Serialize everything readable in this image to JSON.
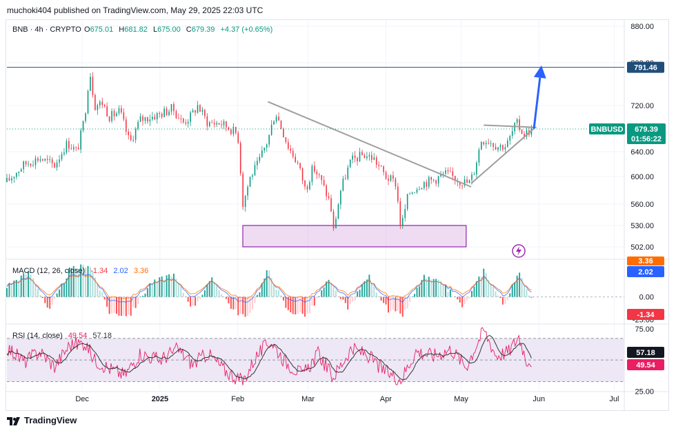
{
  "header": {
    "publish_line": "muchoki404 published on TradingView.com, May 29, 2025 22:03 UTC"
  },
  "legend": {
    "symbol": "BNB · 4h · CRYPTO",
    "open_label": "O",
    "open": "675.01",
    "high_label": "H",
    "high": "681.82",
    "low_label": "L",
    "low": "675.00",
    "close_label": "C",
    "close": "679.39",
    "change": "+4.37 (+0.65%)"
  },
  "colors": {
    "up": "#089981",
    "down": "#f23645",
    "accent": "#2962ff",
    "resistance_line": "#1f4e79",
    "macd_line": "#2962ff",
    "signal_line": "#ff6d00",
    "rsi_line": "#e91e63",
    "rsi_ma": "#333333",
    "rsi_band": "#ede7f6",
    "support_box": "#e1bee7",
    "support_box_border": "#8e24aa",
    "price_badge": "#089981",
    "trend_line": "#9e9e9e"
  },
  "chart_data": [
    {
      "type": "candlestick",
      "panel": "price",
      "series_name": "BNBUSD",
      "interval": "4h",
      "ylim": [
        485,
        895
      ],
      "y_ticks": [
        "880.00",
        "800.00",
        "720.00",
        "640.00",
        "600.00",
        "560.00",
        "530.00",
        "502.00"
      ],
      "y_tick_values": [
        880,
        800,
        720,
        640,
        600,
        560,
        530,
        502
      ],
      "x_ticks": [
        "Dec",
        "2025",
        "Feb",
        "Mar",
        "Apr",
        "May",
        "Jun",
        "Jul"
      ],
      "x_tick_dates": [
        "2024-12-01",
        "2025-01-01",
        "2025-02-01",
        "2025-03-01",
        "2025-04-01",
        "2025-05-01",
        "2025-06-01",
        "2025-07-01"
      ],
      "x_range": [
        "2024-11-01",
        "2025-07-05"
      ],
      "price_path": [
        [
          "2024-11-01",
          592
        ],
        [
          "2024-11-08",
          620
        ],
        [
          "2024-11-14",
          630
        ],
        [
          "2024-11-20",
          618
        ],
        [
          "2024-11-25",
          655
        ],
        [
          "2024-11-29",
          640
        ],
        [
          "2024-12-02",
          700
        ],
        [
          "2024-12-04",
          787
        ],
        [
          "2024-12-06",
          720
        ],
        [
          "2024-12-09",
          725
        ],
        [
          "2024-12-12",
          700
        ],
        [
          "2024-12-16",
          710
        ],
        [
          "2024-12-20",
          655
        ],
        [
          "2024-12-24",
          695
        ],
        [
          "2024-12-28",
          700
        ],
        [
          "2025-01-01",
          705
        ],
        [
          "2025-01-06",
          715
        ],
        [
          "2025-01-10",
          690
        ],
        [
          "2025-01-13",
          700
        ],
        [
          "2025-01-16",
          720
        ],
        [
          "2025-01-20",
          690
        ],
        [
          "2025-01-25",
          690
        ],
        [
          "2025-01-29",
          680
        ],
        [
          "2025-02-01",
          670
        ],
        [
          "2025-02-03",
          560
        ],
        [
          "2025-02-06",
          600
        ],
        [
          "2025-02-09",
          620
        ],
        [
          "2025-02-13",
          660
        ],
        [
          "2025-02-16",
          710
        ],
        [
          "2025-02-21",
          650
        ],
        [
          "2025-02-25",
          620
        ],
        [
          "2025-02-28",
          580
        ],
        [
          "2025-03-03",
          615
        ],
        [
          "2025-03-06",
          595
        ],
        [
          "2025-03-10",
          560
        ],
        [
          "2025-03-11",
          520
        ],
        [
          "2025-03-14",
          580
        ],
        [
          "2025-03-18",
          625
        ],
        [
          "2025-03-23",
          635
        ],
        [
          "2025-03-27",
          630
        ],
        [
          "2025-04-01",
          600
        ],
        [
          "2025-04-05",
          590
        ],
        [
          "2025-04-07",
          525
        ],
        [
          "2025-04-10",
          575
        ],
        [
          "2025-04-15",
          590
        ],
        [
          "2025-04-20",
          595
        ],
        [
          "2025-04-25",
          605
        ],
        [
          "2025-04-30",
          595
        ],
        [
          "2025-05-04",
          590
        ],
        [
          "2025-05-06",
          605
        ],
        [
          "2025-05-09",
          660
        ],
        [
          "2025-05-12",
          660
        ],
        [
          "2025-05-15",
          650
        ],
        [
          "2025-05-19",
          650
        ],
        [
          "2025-05-23",
          690
        ],
        [
          "2025-05-26",
          670
        ],
        [
          "2025-05-29",
          679.39
        ]
      ],
      "annotations": {
        "resistance_level": 791.46,
        "resistance_label": "791.46",
        "current_price_label": "679.39",
        "bar_countdown": "01:56:22",
        "support_zone": {
          "from": "2025-02-03",
          "to": "2025-05-03",
          "low": 502,
          "high": 530
        },
        "descending_trendline": [
          [
            "2025-02-13",
            727
          ],
          [
            "2025-05-05",
            585
          ]
        ],
        "triangle_upper": [
          [
            "2025-05-10",
            686
          ],
          [
            "2025-05-31",
            682
          ]
        ],
        "triangle_lower": [
          [
            "2025-05-05",
            590
          ],
          [
            "2025-05-30",
            680
          ]
        ],
        "projection_arrow": [
          [
            "2025-05-30",
            680
          ],
          [
            "2025-06-02",
            795
          ]
        ]
      }
    },
    {
      "type": "histogram",
      "panel": "macd",
      "title": "MACD (12, 26, close)",
      "values": {
        "histogram": "-1.34",
        "macd": "2.02",
        "signal": "3.36"
      },
      "histogram_value": -1.34,
      "macd_value": 2.02,
      "signal_value": 3.36,
      "y_ticks": [
        "0.00",
        "-25.00"
      ],
      "y_tick_values": [
        0,
        -25
      ],
      "ylim": [
        -30,
        40
      ],
      "oscillation_path": [
        [
          "2024-11-01",
          12
        ],
        [
          "2024-11-10",
          28
        ],
        [
          "2024-11-18",
          -16
        ],
        [
          "2024-11-26",
          30
        ],
        [
          "2024-12-04",
          36
        ],
        [
          "2024-12-12",
          -18
        ],
        [
          "2024-12-20",
          -20
        ],
        [
          "2024-12-28",
          14
        ],
        [
          "2025-01-06",
          26
        ],
        [
          "2025-01-14",
          -12
        ],
        [
          "2025-01-22",
          20
        ],
        [
          "2025-01-30",
          -14
        ],
        [
          "2025-02-05",
          -24
        ],
        [
          "2025-02-13",
          30
        ],
        [
          "2025-02-21",
          -16
        ],
        [
          "2025-03-01",
          -20
        ],
        [
          "2025-03-09",
          18
        ],
        [
          "2025-03-17",
          -14
        ],
        [
          "2025-03-25",
          24
        ],
        [
          "2025-04-02",
          -16
        ],
        [
          "2025-04-08",
          -20
        ],
        [
          "2025-04-16",
          22
        ],
        [
          "2025-04-24",
          14
        ],
        [
          "2025-05-02",
          -12
        ],
        [
          "2025-05-10",
          30
        ],
        [
          "2025-05-18",
          -10
        ],
        [
          "2025-05-24",
          26
        ],
        [
          "2025-05-29",
          -1.34
        ]
      ]
    },
    {
      "type": "line",
      "panel": "rsi",
      "title": "RSI (14, close)",
      "values": {
        "rsi": "49.54",
        "rsi_ma": "57.18"
      },
      "rsi_value": 49.54,
      "rsi_ma_value": 57.18,
      "y_ticks": [
        "75.00",
        "25.00"
      ],
      "y_tick_values": [
        75,
        25
      ],
      "band": [
        30,
        70
      ],
      "ylim": [
        22,
        82
      ],
      "rsi_path": [
        [
          "2024-11-01",
          62
        ],
        [
          "2024-11-08",
          48
        ],
        [
          "2024-11-14",
          58
        ],
        [
          "2024-11-20",
          44
        ],
        [
          "2024-11-26",
          64
        ],
        [
          "2024-12-02",
          66
        ],
        [
          "2024-12-06",
          50
        ],
        [
          "2024-12-12",
          42
        ],
        [
          "2024-12-18",
          36
        ],
        [
          "2024-12-24",
          56
        ],
        [
          "2025-01-01",
          50
        ],
        [
          "2025-01-08",
          60
        ],
        [
          "2025-01-14",
          46
        ],
        [
          "2025-01-20",
          56
        ],
        [
          "2025-01-27",
          40
        ],
        [
          "2025-02-03",
          30
        ],
        [
          "2025-02-08",
          52
        ],
        [
          "2025-02-14",
          68
        ],
        [
          "2025-02-20",
          48
        ],
        [
          "2025-02-27",
          36
        ],
        [
          "2025-03-05",
          56
        ],
        [
          "2025-03-11",
          34
        ],
        [
          "2025-03-18",
          60
        ],
        [
          "2025-03-24",
          56
        ],
        [
          "2025-03-31",
          40
        ],
        [
          "2025-04-07",
          32
        ],
        [
          "2025-04-13",
          58
        ],
        [
          "2025-04-20",
          54
        ],
        [
          "2025-04-27",
          60
        ],
        [
          "2025-05-03",
          44
        ],
        [
          "2025-05-10",
          78
        ],
        [
          "2025-05-15",
          54
        ],
        [
          "2025-05-20",
          58
        ],
        [
          "2025-05-24",
          72
        ],
        [
          "2025-05-27",
          50
        ],
        [
          "2025-05-29",
          49.54
        ]
      ]
    }
  ],
  "footer": {
    "brand": "TradingView"
  }
}
